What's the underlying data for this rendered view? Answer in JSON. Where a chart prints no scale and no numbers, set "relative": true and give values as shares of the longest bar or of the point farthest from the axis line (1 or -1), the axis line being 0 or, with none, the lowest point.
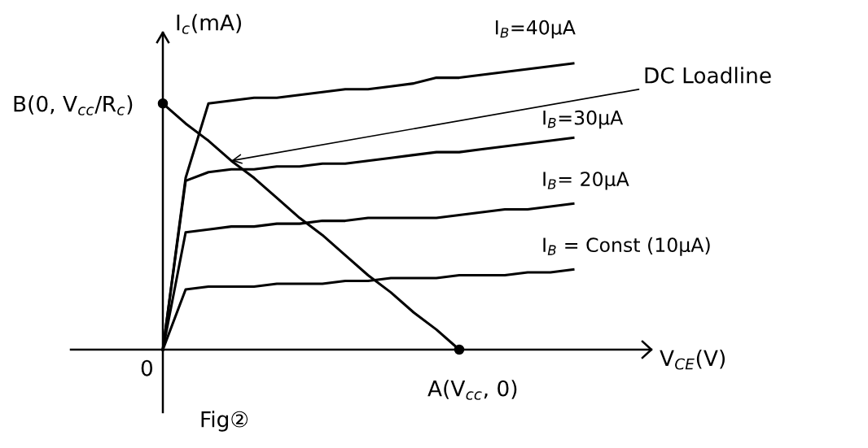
{
  "chart_data": {
    "type": "line",
    "relative": true,
    "xlabel": "V$_{CE}$(V)",
    "ylabel": "I$_{c}$(mA)",
    "categories": [
      null,
      null,
      null,
      null,
      null,
      null,
      null,
      null,
      null,
      null,
      null,
      null,
      null,
      null,
      null,
      null,
      null,
      null,
      null
    ],
    "series": [
      {
        "name": "I$_{B}$=40μA",
        "color": "#000000",
        "values": [
          0,
          0.6,
          0.86,
          0.87,
          0.88,
          0.88,
          0.89,
          0.9,
          0.91,
          0.91,
          0.92,
          0.93,
          0.95,
          0.95,
          0.96,
          0.97,
          0.98,
          0.99,
          1.0
        ]
      },
      {
        "name": "I$_{B}$=30μA",
        "color": "#000000",
        "values": [
          0,
          0.59,
          0.62,
          0.63,
          0.63,
          0.64,
          0.64,
          0.65,
          0.65,
          0.66,
          0.67,
          0.68,
          0.69,
          0.69,
          0.7,
          0.71,
          0.72,
          0.73,
          0.74
        ]
      },
      {
        "name": "I$_{B}$= 20μA",
        "color": "#000000",
        "values": [
          0,
          0.41,
          0.42,
          0.43,
          0.43,
          0.44,
          0.44,
          0.45,
          0.45,
          0.46,
          0.46,
          0.46,
          0.46,
          0.47,
          0.48,
          0.49,
          0.49,
          0.5,
          0.51
        ]
      },
      {
        "name": "I$_{B}$ = Const (10μA)",
        "color": "#000000",
        "values": [
          0,
          0.21,
          0.22,
          0.22,
          0.22,
          0.23,
          0.23,
          0.23,
          0.24,
          0.24,
          0.25,
          0.25,
          0.25,
          0.26,
          0.26,
          0.26,
          0.27,
          0.27,
          0.28
        ]
      },
      {
        "name": "DC Loadline",
        "color": "#000000",
        "values": [
          0.86,
          0.79,
          0.73,
          0.66,
          0.6,
          0.53,
          0.46,
          0.4,
          0.33,
          0.26,
          0.2,
          0.13,
          0.07,
          0,
          null,
          null,
          null,
          null,
          null
        ]
      }
    ],
    "annotations": [
      "B(0, V$_{cc}$/R$_{c}$)",
      "A(V$_{cc}$, 0)",
      "0",
      "Fig②"
    ]
  }
}
